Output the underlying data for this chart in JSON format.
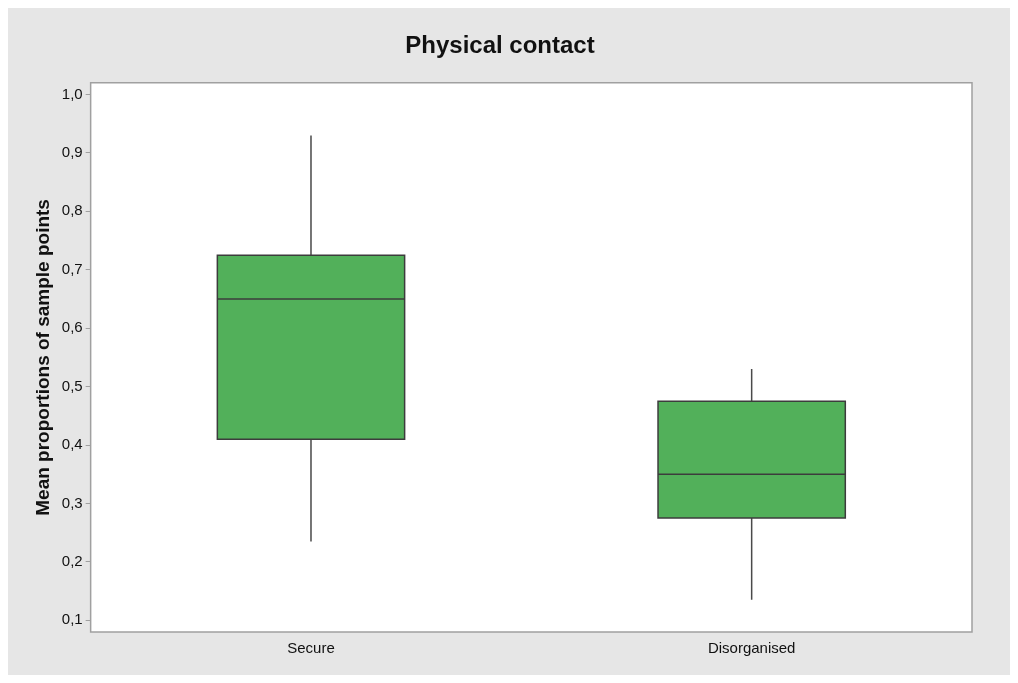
{
  "chart_data": {
    "type": "box",
    "title": "Physical contact",
    "ylabel": "Mean proportions of sample points",
    "categories": [
      "Secure",
      "Disorganised"
    ],
    "color": "#52b05a",
    "boxes": [
      {
        "low": 0.235,
        "q1": 0.41,
        "median": 0.65,
        "q3": 0.725,
        "high": 0.93
      },
      {
        "low": 0.135,
        "q1": 0.275,
        "median": 0.35,
        "q3": 0.475,
        "high": 0.53
      }
    ],
    "ylim": [
      0.08,
      1.02
    ],
    "yticks": [
      {
        "value": 0.1,
        "label": "0,1"
      },
      {
        "value": 0.2,
        "label": "0,2"
      },
      {
        "value": 0.3,
        "label": "0,3"
      },
      {
        "value": 0.4,
        "label": "0,4"
      },
      {
        "value": 0.5,
        "label": "0,5"
      },
      {
        "value": 0.6,
        "label": "0,6"
      },
      {
        "value": 0.7,
        "label": "0,7"
      },
      {
        "value": 0.8,
        "label": "0,8"
      },
      {
        "value": 0.9,
        "label": "0,9"
      },
      {
        "value": 1,
        "label": "1,0"
      }
    ],
    "grid": false,
    "legend": false
  }
}
